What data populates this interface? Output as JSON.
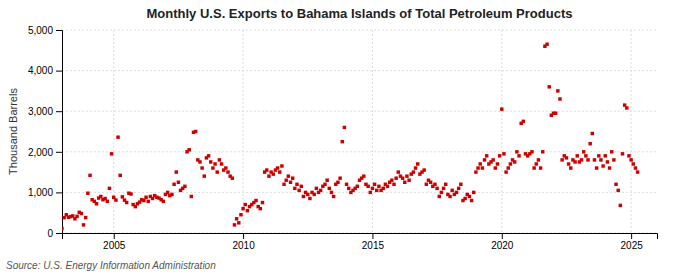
{
  "chart_data": {
    "type": "scatter",
    "title": "Monthly U.S. Exports to Bahama Islands of Total Petroleum Products",
    "y_label": "Thousand Barrels",
    "annotations": [
      "Source: U.S. Energy Information Administration"
    ],
    "color": "#cc0000",
    "marker": "square",
    "grid": true,
    "xlim": [
      2003.0,
      2026.0
    ],
    "xticks": [
      2005,
      2010,
      2015,
      2020,
      2025
    ],
    "ylim": [
      0,
      5000
    ],
    "yticks": [
      0,
      {
        "value": 1000,
        "label": "1,000"
      },
      {
        "value": 2000,
        "label": "2,000"
      },
      {
        "value": 3000,
        "label": "3,000"
      },
      {
        "value": 4000,
        "label": "4,000"
      },
      {
        "value": 5000,
        "label": "5,000"
      }
    ],
    "x": [
      2003,
      2003.0833333333333,
      2003.1666666666667,
      2003.25,
      2003.3333333333333,
      2003.4166666666667,
      2003.5,
      2003.5833333333333,
      2003.6666666666667,
      2003.75,
      2003.8333333333333,
      2003.9166666666667,
      2004,
      2004.0833333333333,
      2004.1666666666667,
      2004.25,
      2004.3333333333333,
      2004.4166666666667,
      2004.5,
      2004.5833333333333,
      2004.6666666666667,
      2004.75,
      2004.8333333333333,
      2004.9166666666667,
      2005,
      2005.0833333333333,
      2005.1666666666667,
      2005.25,
      2005.3333333333333,
      2005.4166666666667,
      2005.5,
      2005.5833333333333,
      2005.6666666666667,
      2005.75,
      2005.8333333333333,
      2005.9166666666667,
      2006,
      2006.0833333333333,
      2006.1666666666667,
      2006.25,
      2006.3333333333333,
      2006.4166666666667,
      2006.5,
      2006.5833333333333,
      2006.6666666666667,
      2006.75,
      2006.8333333333333,
      2006.9166666666667,
      2007,
      2007.0833333333333,
      2007.1666666666667,
      2007.25,
      2007.3333333333333,
      2007.4166666666667,
      2007.5,
      2007.5833333333333,
      2007.6666666666667,
      2007.75,
      2007.8333333333333,
      2007.9166666666667,
      2008,
      2008.0833333333333,
      2008.1666666666667,
      2008.25,
      2008.3333333333333,
      2008.4166666666667,
      2008.5,
      2008.5833333333333,
      2008.6666666666667,
      2008.75,
      2008.8333333333333,
      2008.9166666666667,
      2009,
      2009.0833333333333,
      2009.1666666666667,
      2009.25,
      2009.3333333333333,
      2009.4166666666667,
      2009.5,
      2009.5833333333333,
      2009.6666666666667,
      2009.75,
      2009.8333333333333,
      2009.9166666666667,
      2010,
      2010.0833333333333,
      2010.1666666666667,
      2010.25,
      2010.3333333333333,
      2010.4166666666667,
      2010.5,
      2010.5833333333333,
      2010.6666666666667,
      2010.75,
      2010.8333333333333,
      2010.9166666666667,
      2011,
      2011.0833333333333,
      2011.1666666666667,
      2011.25,
      2011.3333333333333,
      2011.4166666666667,
      2011.5,
      2011.5833333333333,
      2011.6666666666667,
      2011.75,
      2011.8333333333333,
      2011.9166666666667,
      2012,
      2012.0833333333333,
      2012.1666666666667,
      2012.25,
      2012.3333333333333,
      2012.4166666666667,
      2012.5,
      2012.5833333333333,
      2012.6666666666667,
      2012.75,
      2012.8333333333333,
      2012.9166666666667,
      2013,
      2013.0833333333333,
      2013.1666666666667,
      2013.25,
      2013.3333333333333,
      2013.4166666666667,
      2013.5,
      2013.5833333333333,
      2013.6666666666667,
      2013.75,
      2013.8333333333333,
      2013.9166666666667,
      2014,
      2014.0833333333333,
      2014.1666666666667,
      2014.25,
      2014.3333333333333,
      2014.4166666666667,
      2014.5,
      2014.5833333333333,
      2014.6666666666667,
      2014.75,
      2014.8333333333333,
      2014.9166666666667,
      2015,
      2015.0833333333333,
      2015.1666666666667,
      2015.25,
      2015.3333333333333,
      2015.4166666666667,
      2015.5,
      2015.5833333333333,
      2015.6666666666667,
      2015.75,
      2015.8333333333333,
      2015.9166666666667,
      2016,
      2016.0833333333333,
      2016.1666666666667,
      2016.25,
      2016.3333333333333,
      2016.4166666666667,
      2016.5,
      2016.5833333333333,
      2016.6666666666667,
      2016.75,
      2016.8333333333333,
      2016.9166666666667,
      2017,
      2017.0833333333333,
      2017.1666666666667,
      2017.25,
      2017.3333333333333,
      2017.4166666666667,
      2017.5,
      2017.5833333333333,
      2017.6666666666667,
      2017.75,
      2017.8333333333333,
      2017.9166666666667,
      2018,
      2018.0833333333333,
      2018.1666666666667,
      2018.25,
      2018.3333333333333,
      2018.4166666666667,
      2018.5,
      2018.5833333333333,
      2018.6666666666667,
      2018.75,
      2018.8333333333333,
      2018.9166666666667,
      2019,
      2019.0833333333333,
      2019.1666666666667,
      2019.25,
      2019.3333333333333,
      2019.4166666666667,
      2019.5,
      2019.5833333333333,
      2019.6666666666667,
      2019.75,
      2019.8333333333333,
      2019.9166666666667,
      2020,
      2020.0833333333333,
      2020.1666666666667,
      2020.25,
      2020.3333333333333,
      2020.4166666666667,
      2020.5,
      2020.5833333333333,
      2020.6666666666667,
      2020.75,
      2020.8333333333333,
      2020.9166666666667,
      2021,
      2021.0833333333333,
      2021.1666666666667,
      2021.25,
      2021.3333333333333,
      2021.4166666666667,
      2021.5,
      2021.5833333333333,
      2021.6666666666667,
      2021.75,
      2021.8333333333333,
      2021.9166666666667,
      2022,
      2022.0833333333333,
      2022.1666666666667,
      2022.25,
      2022.3333333333333,
      2022.4166666666667,
      2022.5,
      2022.5833333333333,
      2022.6666666666667,
      2022.75,
      2022.8333333333333,
      2022.9166666666667,
      2023,
      2023.0833333333333,
      2023.1666666666667,
      2023.25,
      2023.3333333333333,
      2023.4166666666667,
      2023.5,
      2023.5833333333333,
      2023.6666666666667,
      2023.75,
      2023.8333333333333,
      2023.9166666666667,
      2024,
      2024.0833333333333,
      2024.1666666666667,
      2024.25,
      2024.3333333333333,
      2024.4166666666667,
      2024.5,
      2024.5833333333333,
      2024.6666666666667,
      2024.75,
      2024.8333333333333,
      2024.9166666666667,
      2025,
      2025.0833333333333,
      2025.1666666666667,
      2025.25
    ],
    "values": [
      113,
      378,
      450,
      388,
      405,
      420,
      350,
      410,
      510,
      480,
      200,
      380,
      980,
      1420,
      820,
      780,
      720,
      860,
      900,
      820,
      850,
      780,
      1100,
      1950,
      880,
      810,
      2360,
      1420,
      890,
      810,
      750,
      980,
      960,
      700,
      650,
      720,
      760,
      820,
      800,
      880,
      780,
      900,
      850,
      920,
      880,
      860,
      820,
      780,
      950,
      1000,
      920,
      950,
      1200,
      1500,
      1250,
      1050,
      1100,
      1150,
      2000,
      2050,
      900,
      2480,
      2500,
      1800,
      1750,
      1600,
      1400,
      1850,
      1900,
      1750,
      1600,
      1700,
      1500,
      1800,
      1700,
      1550,
      1600,
      1500,
      1400,
      1350,
      200,
      350,
      250,
      450,
      600,
      700,
      550,
      650,
      700,
      750,
      800,
      650,
      600,
      750,
      1500,
      1550,
      1400,
      1500,
      1450,
      1550,
      1600,
      1500,
      1650,
      1200,
      1300,
      1400,
      1250,
      1350,
      1100,
      1200,
      1050,
      1150,
      900,
      1000,
      950,
      850,
      1000,
      950,
      1100,
      1000,
      1050,
      1150,
      1200,
      1300,
      1100,
      1000,
      900,
      1200,
      1250,
      1350,
      2250,
      2600,
      1200,
      1100,
      1000,
      1050,
      1100,
      1150,
      1300,
      1350,
      1400,
      1200,
      1150,
      1000,
      1100,
      1200,
      1050,
      1150,
      1050,
      1100,
      1200,
      1150,
      1250,
      1300,
      1200,
      1350,
      1500,
      1400,
      1350,
      1250,
      1400,
      1300,
      1450,
      1500,
      1600,
      1700,
      1450,
      1500,
      1550,
      1200,
      1300,
      1250,
      1150,
      1200,
      1100,
      900,
      1000,
      1100,
      1200,
      950,
      900,
      1050,
      950,
      1000,
      1100,
      1200,
      800,
      850,
      950,
      900,
      800,
      1000,
      1500,
      1600,
      1700,
      1600,
      1800,
      1900,
      1700,
      1750,
      1800,
      1600,
      1700,
      1900,
      3050,
      1950,
      1500,
      1600,
      1700,
      1800,
      1750,
      2000,
      1900,
      2700,
      2750,
      1950,
      1900,
      1950,
      2000,
      1600,
      1700,
      1800,
      1600,
      2000,
      4600,
      4650,
      3600,
      2900,
      2950,
      2950,
      3500,
      3300,
      1800,
      1900,
      1850,
      1700,
      1600,
      1800,
      1750,
      1900,
      1750,
      1800,
      2000,
      1900,
      1800,
      2200,
      2450,
      1800,
      1600,
      1900,
      1800,
      1650,
      1900,
      1750,
      1600,
      2000,
      1800,
      1200,
      1050,
      680,
      1950,
      3150,
      3080,
      1900,
      1800,
      1700,
      1600,
      1500
    ]
  }
}
